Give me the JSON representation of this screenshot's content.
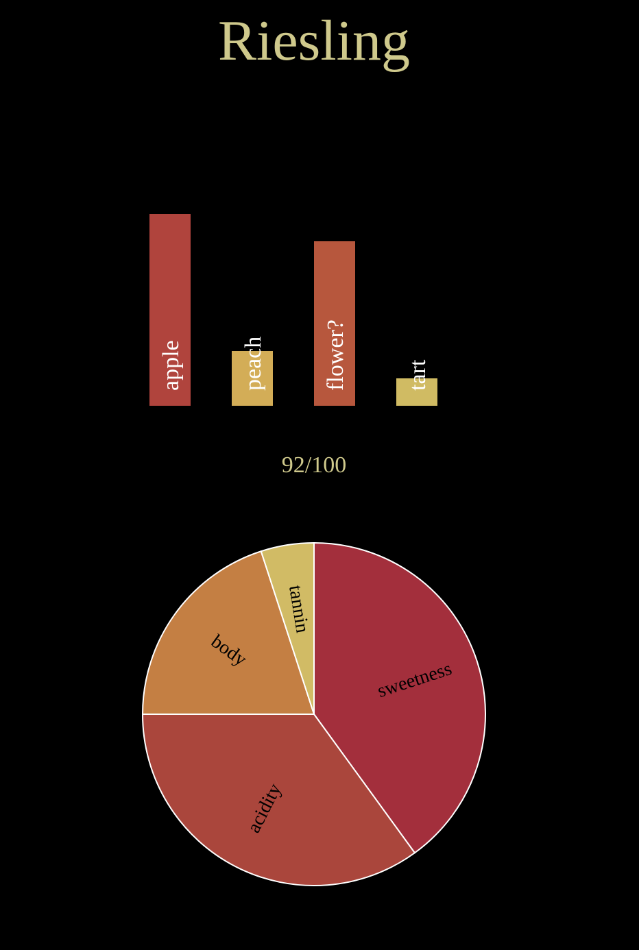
{
  "title": "Riesling",
  "score": "92/100",
  "colors": {
    "background": "#000000",
    "title_text": "#cfc98c",
    "bar_label_text": "#ffffff",
    "slice_label_text": "#000000",
    "slice_stroke": "#ffffff"
  },
  "chart_data": [
    {
      "type": "bar",
      "categories": [
        "apple",
        "peach",
        "flower?",
        "tart"
      ],
      "values": [
        7,
        2,
        6,
        1
      ],
      "colors": [
        "#b0443d",
        "#d3ad57",
        "#b7573d",
        "#d0bb63"
      ],
      "ylim": [
        0,
        7
      ],
      "title": "",
      "xlabel": "",
      "ylabel": "",
      "grid": false,
      "legend": "none"
    },
    {
      "type": "pie",
      "labels": [
        "sweetness",
        "acidity",
        "body",
        "tannin"
      ],
      "values": [
        40,
        35,
        20,
        5
      ],
      "colors": [
        "#a32f3c",
        "#aa463c",
        "#c47f43",
        "#d1bb65"
      ],
      "start": "top",
      "direction": "clockwise",
      "title": "",
      "legend": "none"
    }
  ]
}
